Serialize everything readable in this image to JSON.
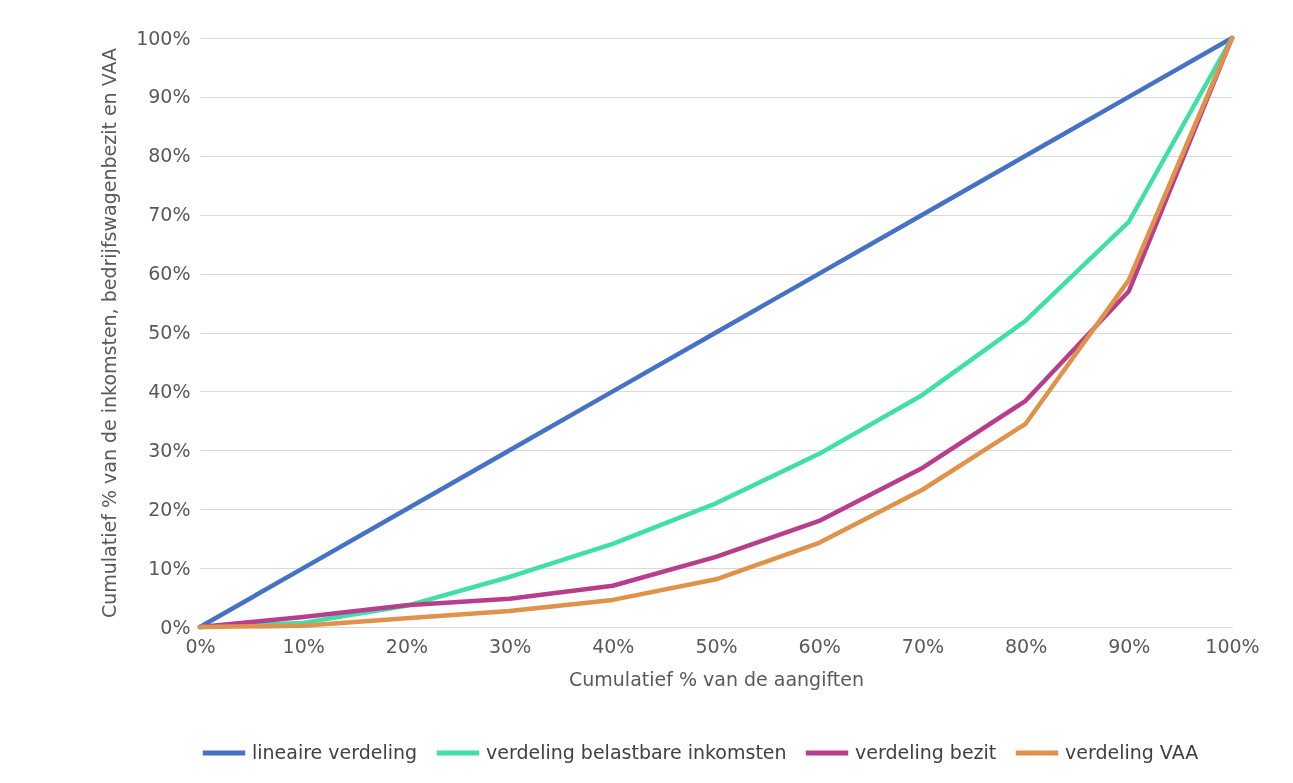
{
  "chart_data": {
    "type": "line",
    "xlabel": "Cumulatief % van de aangiften",
    "ylabel": "Cumulatief % van de inkomsten, bedrijfswagenbezit en VAA",
    "x": [
      0,
      10,
      20,
      30,
      40,
      50,
      60,
      70,
      80,
      90,
      100
    ],
    "xlim": [
      0,
      100
    ],
    "ylim": [
      0,
      100
    ],
    "xticks": [
      {
        "value": 0,
        "label": "0%"
      },
      {
        "value": 10,
        "label": "10%"
      },
      {
        "value": 20,
        "label": "20%"
      },
      {
        "value": 30,
        "label": "30%"
      },
      {
        "value": 40,
        "label": "40%"
      },
      {
        "value": 50,
        "label": "50%"
      },
      {
        "value": 60,
        "label": "60%"
      },
      {
        "value": 70,
        "label": "70%"
      },
      {
        "value": 80,
        "label": "80%"
      },
      {
        "value": 90,
        "label": "90%"
      },
      {
        "value": 100,
        "label": "100%"
      }
    ],
    "yticks": [
      {
        "value": 0,
        "label": "0%"
      },
      {
        "value": 10,
        "label": "10%"
      },
      {
        "value": 20,
        "label": "20%"
      },
      {
        "value": 30,
        "label": "30%"
      },
      {
        "value": 40,
        "label": "40%"
      },
      {
        "value": 50,
        "label": "50%"
      },
      {
        "value": 60,
        "label": "60%"
      },
      {
        "value": 70,
        "label": "70%"
      },
      {
        "value": 80,
        "label": "80%"
      },
      {
        "value": 90,
        "label": "90%"
      },
      {
        "value": 100,
        "label": "100%"
      }
    ],
    "grid": "y",
    "legend": "bottom",
    "marker": "none",
    "line_style": "solid",
    "series": [
      {
        "name": "lineaire verdeling",
        "color": "#4472c4",
        "values": [
          0,
          10,
          20,
          30,
          40,
          50,
          60,
          70,
          80,
          90,
          100
        ]
      },
      {
        "name": "verdeling belastbare inkomsten",
        "color": "#3ee0a5",
        "values": [
          0,
          0.7,
          3.6,
          8.5,
          14.1,
          21,
          29.4,
          39.4,
          52,
          68.8,
          100
        ]
      },
      {
        "name": "verdeling bezit",
        "color": "#b83d8c",
        "values": [
          0,
          1.7,
          3.7,
          4.8,
          7,
          11.9,
          18,
          27,
          38.4,
          57,
          100
        ]
      },
      {
        "name": "verdeling VAA",
        "color": "#e0914a",
        "values": [
          0,
          0.2,
          1.5,
          2.7,
          4.6,
          8.1,
          14.3,
          23.3,
          34.5,
          58.9,
          100
        ]
      }
    ]
  }
}
